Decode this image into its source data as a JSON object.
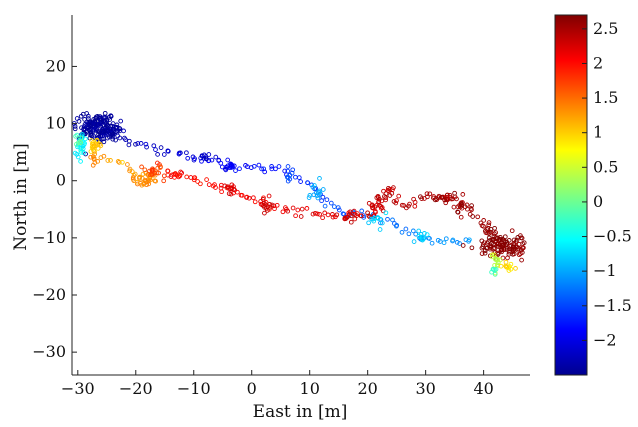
{
  "chart_data": {
    "type": "scatter",
    "title": "",
    "xlabel": "East in [m]",
    "ylabel": "North in [m]",
    "xlim": [
      -31,
      48
    ],
    "ylim": [
      -34,
      29
    ],
    "xticks": [
      -30,
      -20,
      -10,
      0,
      10,
      20,
      30,
      40
    ],
    "xtick_labels": [
      "−30",
      "−20",
      "−10",
      "0",
      "10",
      "20",
      "30",
      "40"
    ],
    "yticks": [
      -30,
      -20,
      -10,
      0,
      10,
      20
    ],
    "ytick_labels": [
      "−30",
      "−20",
      "−10",
      "0",
      "10",
      "20"
    ],
    "grid": false,
    "marker": "hollow-circle",
    "colormap": "jet",
    "colorbar": {
      "range": [
        -2.5,
        2.7
      ],
      "ticks": [
        2.5,
        2,
        1.5,
        1,
        0.5,
        0,
        -0.5,
        -1,
        -1.5,
        -2
      ],
      "tick_labels": [
        "2.5",
        "2",
        "1.5",
        "1",
        "0.5",
        "0",
        "−0.5",
        "−1",
        "−1.5",
        "−2"
      ]
    },
    "series": [
      {
        "clusters": [
          {
            "x": -27.5,
            "y": 9.5,
            "c": -2.45,
            "sx": 2.0,
            "sy": 1.2,
            "n": 140
          },
          {
            "x": -24.5,
            "y": 8.8,
            "c": -2.4,
            "sx": 1.4,
            "sy": 0.9,
            "n": 60
          },
          {
            "x": -29.5,
            "y": 6.3,
            "c": -0.6,
            "sx": 0.5,
            "sy": 1.0,
            "n": 25
          },
          {
            "x": -29.8,
            "y": 7.5,
            "c": -0.1,
            "sx": 0.3,
            "sy": 0.6,
            "n": 8
          },
          {
            "x": -27.2,
            "y": 6.0,
            "c": 1.0,
            "sx": 0.5,
            "sy": 1.0,
            "n": 22
          },
          {
            "x": -27.0,
            "y": 3.0,
            "c": 1.3,
            "sx": 0.4,
            "sy": 0.7,
            "n": 8
          },
          {
            "x": -18.5,
            "y": 0.3,
            "c": 1.3,
            "sx": 1.0,
            "sy": 0.6,
            "n": 35
          },
          {
            "x": -17.0,
            "y": 1.5,
            "c": 1.7,
            "sx": 0.9,
            "sy": 0.7,
            "n": 20
          },
          {
            "x": -13.0,
            "y": 1.0,
            "c": 2.0,
            "sx": 0.6,
            "sy": 0.3,
            "n": 8
          },
          {
            "x": -4.0,
            "y": -1.0,
            "c": 2.2,
            "sx": 0.5,
            "sy": 0.6,
            "n": 12
          },
          {
            "x": 2.5,
            "y": -4.5,
            "c": 2.3,
            "sx": 0.6,
            "sy": 0.8,
            "n": 14
          },
          {
            "x": 17.0,
            "y": -6.0,
            "c": 2.3,
            "sx": 0.6,
            "sy": 0.5,
            "n": 12
          },
          {
            "x": 21.5,
            "y": -4.0,
            "c": 2.3,
            "sx": 0.7,
            "sy": 1.0,
            "n": 18
          },
          {
            "x": 23.5,
            "y": -2.0,
            "c": 2.4,
            "sx": 0.4,
            "sy": 0.4,
            "n": 6
          },
          {
            "x": 33.0,
            "y": -3.0,
            "c": 2.5,
            "sx": 1.3,
            "sy": 0.5,
            "n": 22
          },
          {
            "x": 36.5,
            "y": -4.5,
            "c": 2.55,
            "sx": 0.8,
            "sy": 0.6,
            "n": 14
          },
          {
            "x": 42.5,
            "y": -11.5,
            "c": 2.7,
            "sx": 1.6,
            "sy": 1.0,
            "n": 85
          },
          {
            "x": 45.5,
            "y": -11.5,
            "c": 2.6,
            "sx": 1.0,
            "sy": 1.0,
            "n": 35
          },
          {
            "x": 41.0,
            "y": -8.5,
            "c": 2.6,
            "sx": 0.4,
            "sy": 0.8,
            "n": 10
          },
          {
            "x": 42.0,
            "y": -14.0,
            "c": 0.4,
            "sx": 0.5,
            "sy": 0.9,
            "n": 14
          },
          {
            "x": 41.8,
            "y": -16.0,
            "c": -0.2,
            "sx": 0.3,
            "sy": 0.5,
            "n": 6
          },
          {
            "x": 44.5,
            "y": -15.0,
            "c": 0.9,
            "sx": 0.6,
            "sy": 0.5,
            "n": 12
          },
          {
            "x": 29.5,
            "y": -10.0,
            "c": -0.8,
            "sx": 0.6,
            "sy": 0.5,
            "n": 12
          },
          {
            "x": 22.0,
            "y": -7.0,
            "c": -0.8,
            "sx": 0.7,
            "sy": 0.6,
            "n": 12
          },
          {
            "x": 11.0,
            "y": -2.5,
            "c": -1.0,
            "sx": 0.8,
            "sy": 1.0,
            "n": 14
          },
          {
            "x": 6.5,
            "y": 1.0,
            "c": -1.5,
            "sx": 0.6,
            "sy": 0.5,
            "n": 8
          },
          {
            "x": -8.0,
            "y": 4.0,
            "c": -2.2,
            "sx": 0.7,
            "sy": 0.4,
            "n": 10
          },
          {
            "x": -3.5,
            "y": 2.5,
            "c": -1.9,
            "sx": 0.7,
            "sy": 0.5,
            "n": 14
          }
        ],
        "paths": [
          {
            "pts": [
              [
                -23,
                7.5
              ],
              [
                -18,
                6.0
              ],
              [
                -14,
                5.0
              ],
              [
                -10,
                4.0
              ],
              [
                -6,
                3.5
              ],
              [
                -3,
                2.5
              ],
              [
                1,
                2.2
              ],
              [
                5,
                1.6
              ],
              [
                8,
                0.5
              ],
              [
                11,
                -1.5
              ],
              [
                13,
                -4.0
              ],
              [
                16,
                -5.5
              ],
              [
                19,
                -6.0
              ],
              [
                22,
                -6.5
              ],
              [
                25,
                -8.0
              ],
              [
                28,
                -9.5
              ],
              [
                31,
                -10.5
              ],
              [
                35,
                -10.5
              ],
              [
                38,
                -10.5
              ]
            ],
            "c": [
              -2.3,
              -1.0
            ],
            "n": 110,
            "jitter": 0.35
          },
          {
            "pts": [
              [
                -26,
                4.0
              ],
              [
                -22,
                3.0
              ],
              [
                -20,
                1.0
              ]
            ],
            "c": [
              1.2,
              1.3
            ],
            "n": 12,
            "jitter": 0.3
          },
          {
            "pts": [
              [
                -16,
                2.5
              ],
              [
                -12,
                1.0
              ],
              [
                -9,
                0.0
              ],
              [
                -5,
                -1.5
              ],
              [
                -2,
                -2.5
              ],
              [
                1,
                -3.5
              ],
              [
                4,
                -4.5
              ],
              [
                8,
                -5.5
              ],
              [
                12,
                -6.0
              ],
              [
                16,
                -6.5
              ],
              [
                20,
                -6.0
              ],
              [
                22,
                -4.0
              ],
              [
                24,
                -1.5
              ],
              [
                26,
                -5.0
              ],
              [
                28,
                -3.5
              ],
              [
                30,
                -2.5
              ],
              [
                34,
                -3.0
              ],
              [
                37,
                -4.0
              ],
              [
                39,
                -7.0
              ],
              [
                41,
                -9.0
              ]
            ],
            "c": [
              1.9,
              2.6
            ],
            "n": 130,
            "jitter": 0.35
          }
        ]
      }
    ]
  }
}
